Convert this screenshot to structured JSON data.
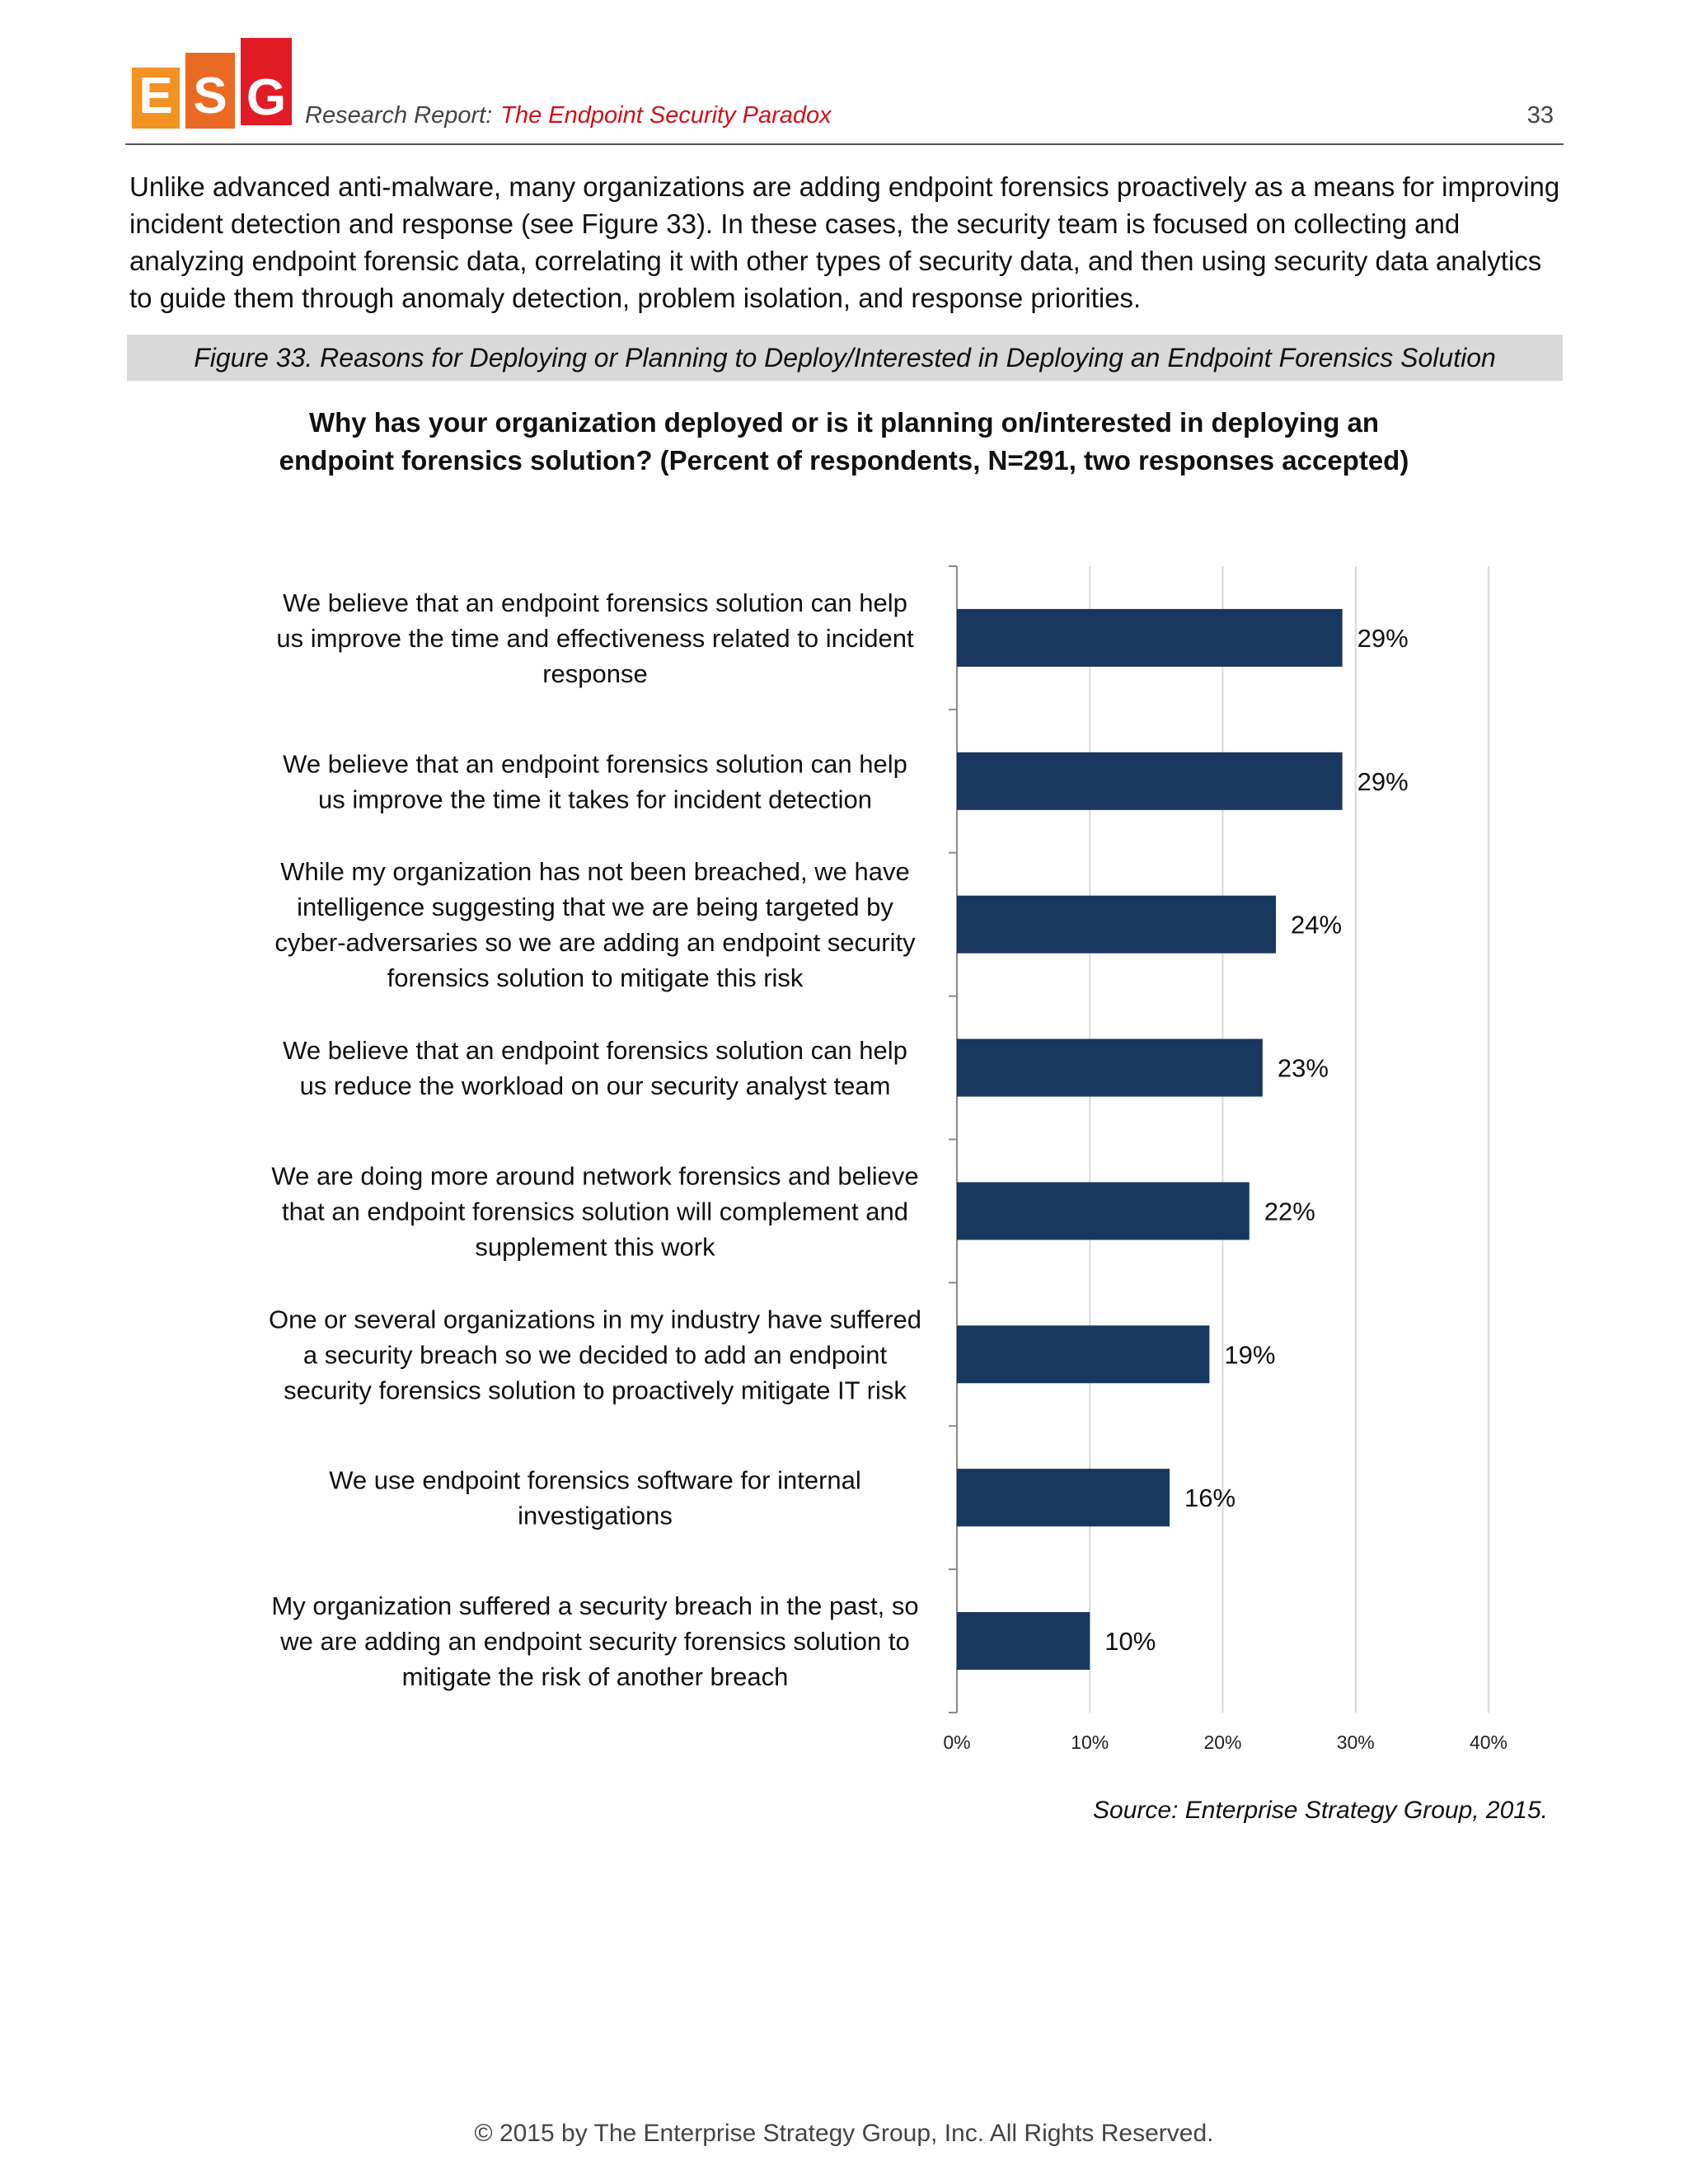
{
  "header": {
    "logo_letters": [
      "E",
      "S",
      "G"
    ],
    "prefix": "Research Report:",
    "title": "The Endpoint Security Paradox",
    "page_number": "33"
  },
  "intro_text": "Unlike advanced anti-malware, many organizations are adding endpoint forensics proactively as a means for improving incident detection and response (see Figure 33). In these cases, the security team is focused on collecting and analyzing endpoint forensic data, correlating it with other types of security data, and then using security data analytics to guide them through anomaly detection, problem isolation, and response priorities.",
  "figure_caption": "Figure 33. Reasons for Deploying or Planning to Deploy/Interested in Deploying an Endpoint Forensics Solution",
  "question": {
    "line1": "Why has your organization deployed or is it planning on/interested in deploying an",
    "line2": "endpoint forensics solution? (Percent of respondents, N=291, two responses accepted)"
  },
  "chart_data": {
    "type": "bar",
    "orientation": "horizontal",
    "categories": [
      [
        "We believe that an endpoint forensics solution can help",
        "us improve the time and effectiveness related to incident",
        "response"
      ],
      [
        "We believe that an endpoint forensics solution can help",
        "us improve the time it takes for incident detection"
      ],
      [
        "While my organization has not been breached, we have",
        "intelligence suggesting that we are being targeted by",
        "cyber-adversaries so we are adding an endpoint security",
        "forensics solution to mitigate this risk"
      ],
      [
        "We believe that an endpoint forensics solution can help",
        "us reduce the workload on our security analyst team"
      ],
      [
        "We are doing more around network forensics and believe",
        "that an endpoint forensics solution will complement and",
        "supplement this work"
      ],
      [
        "One or several organizations in my industry have suffered",
        "a security breach so we decided to add an endpoint",
        "security forensics solution to proactively mitigate IT risk"
      ],
      [
        "We use endpoint forensics software for internal",
        "investigations"
      ],
      [
        "My organization suffered a security breach in the past, so",
        "we are adding an endpoint security forensics solution to",
        "mitigate the risk of another breach"
      ]
    ],
    "values": [
      29,
      29,
      24,
      23,
      22,
      19,
      16,
      10
    ],
    "value_labels": [
      "29%",
      "29%",
      "24%",
      "23%",
      "22%",
      "19%",
      "16%",
      "10%"
    ],
    "xlim": [
      0,
      40
    ],
    "ticks": [
      0,
      10,
      20,
      30,
      40
    ],
    "tick_labels": [
      "0%",
      "10%",
      "20%",
      "30%",
      "40%"
    ],
    "grid": true,
    "bar_color": "#17375e",
    "grid_color": "#d9d9d9"
  },
  "source": "Source: Enterprise Strategy Group, 2015.",
  "footer": "© 2015 by The Enterprise Strategy Group, Inc. All Rights Reserved."
}
